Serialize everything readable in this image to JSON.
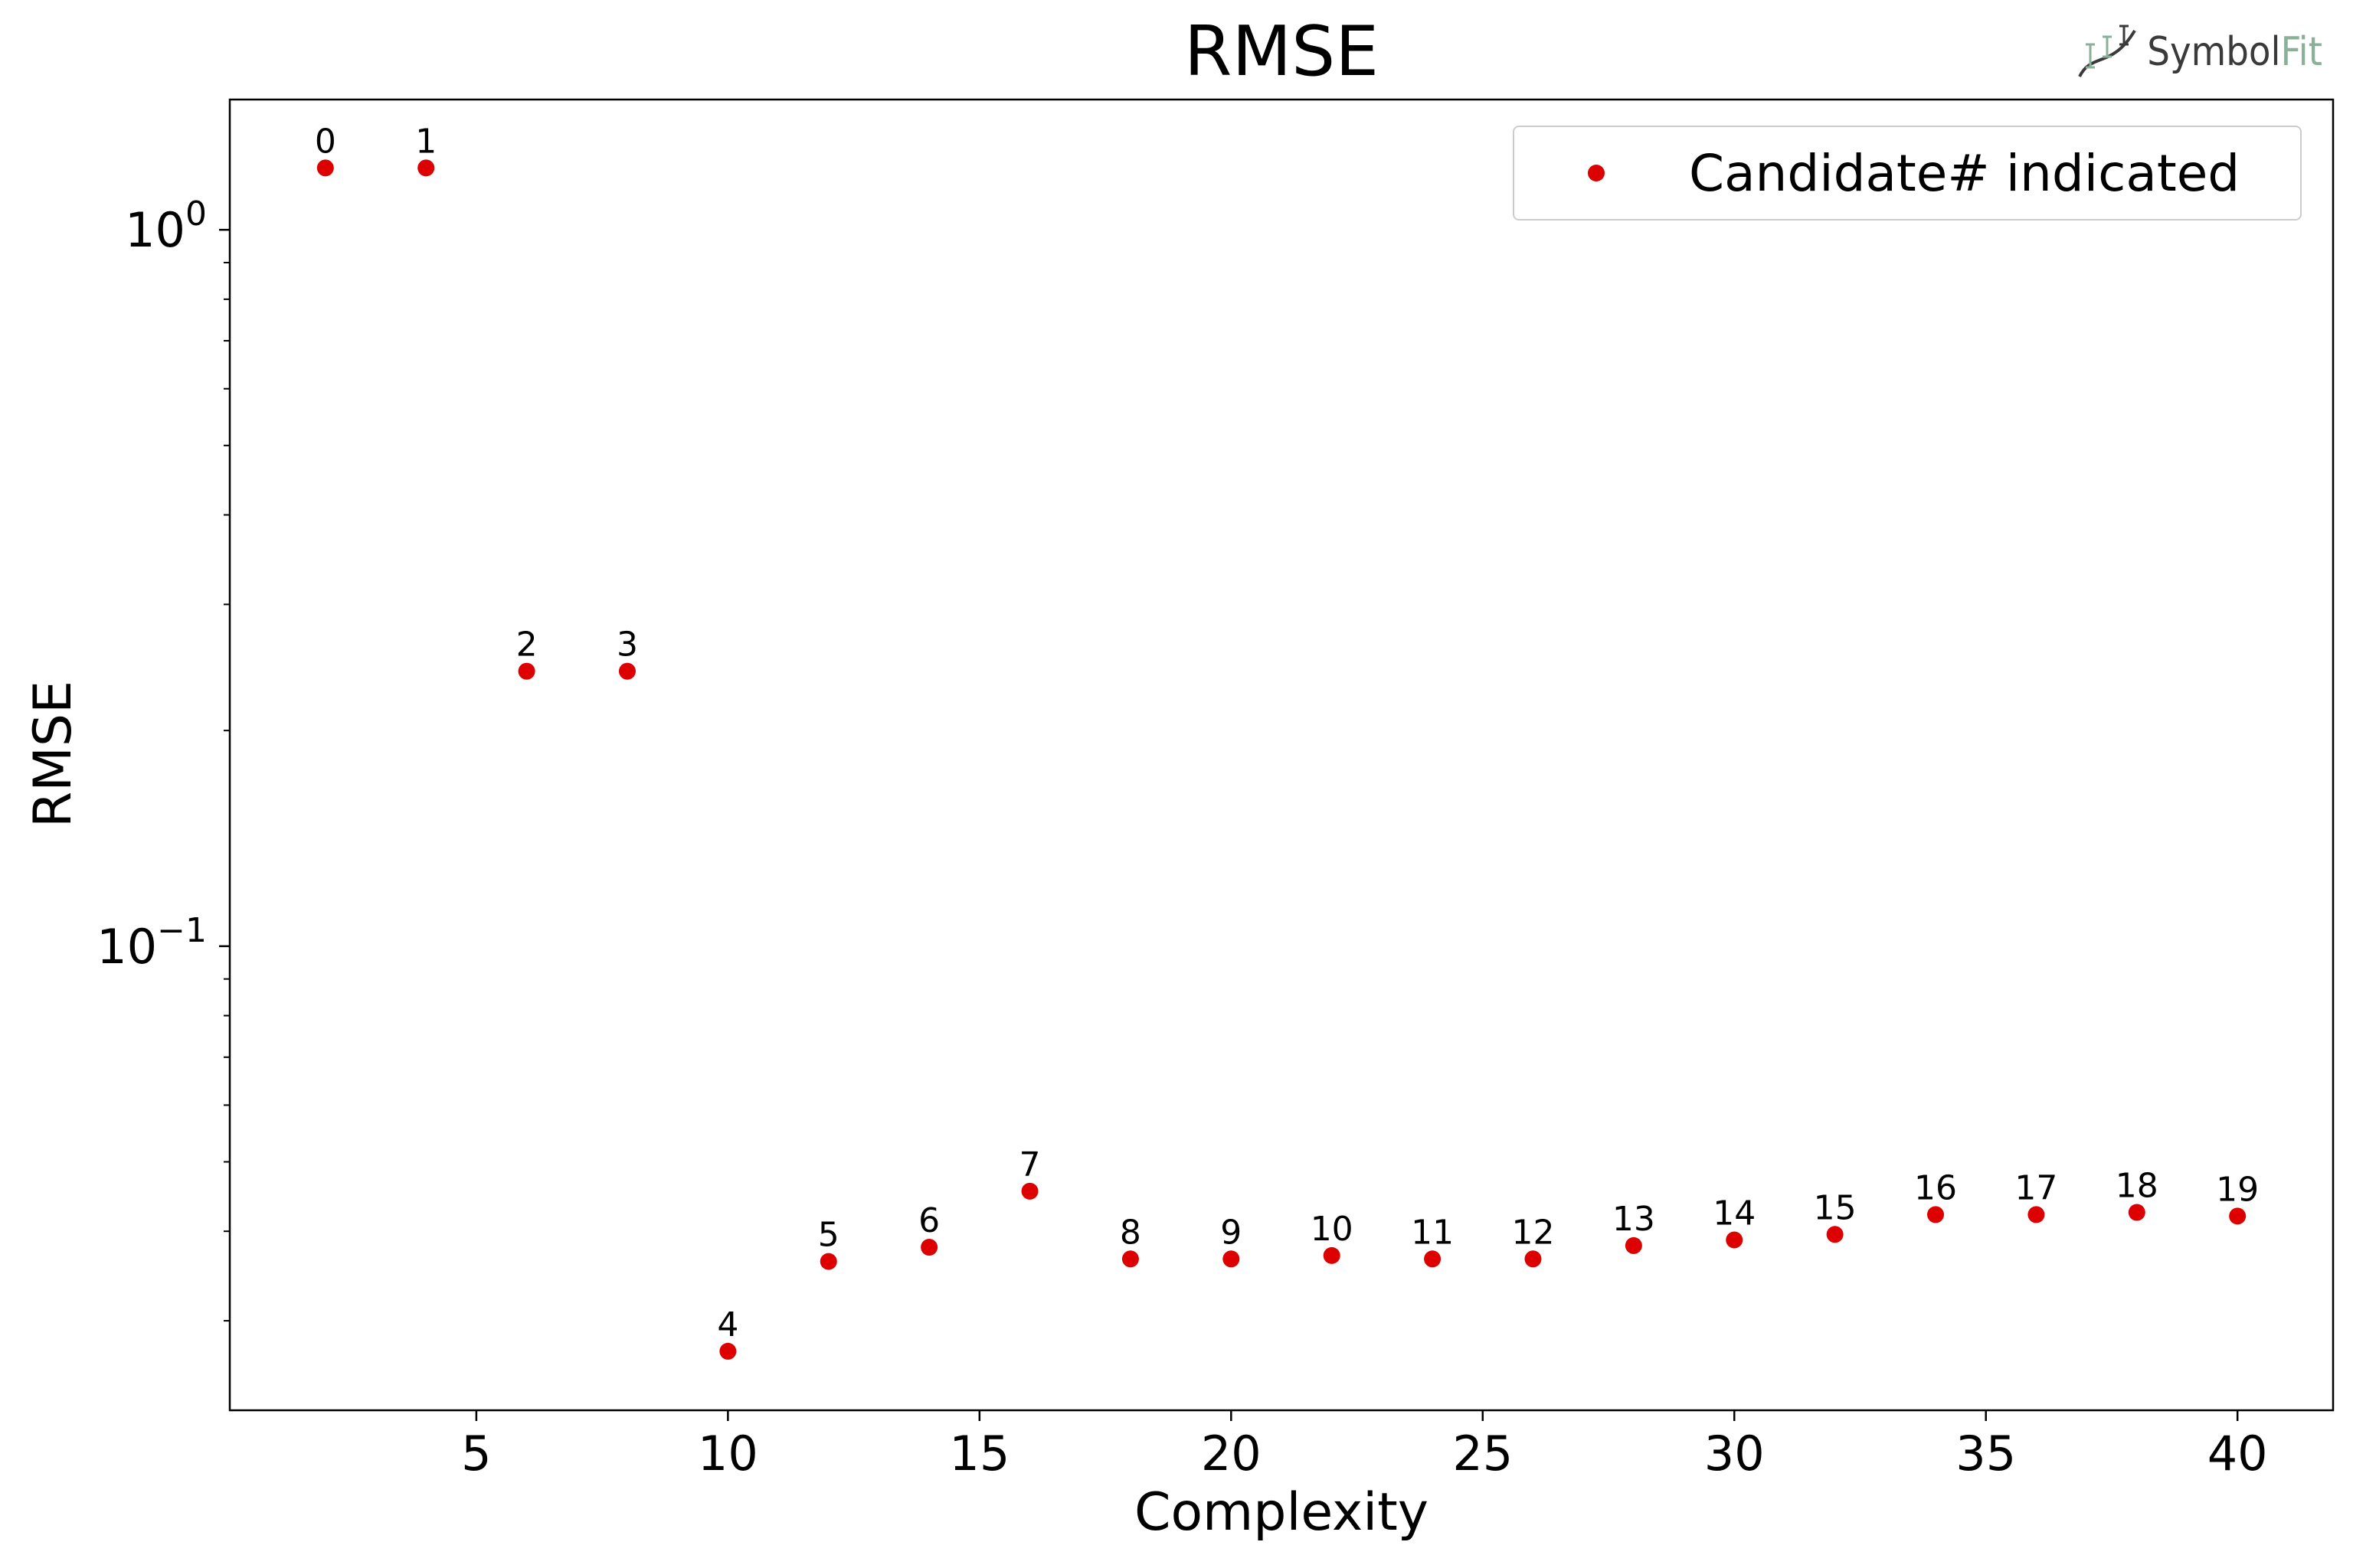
{
  "logo": {
    "name_main": "Symbol",
    "name_accent": "Fit",
    "accent_color": "#8ab09a"
  },
  "chart_data": {
    "type": "scatter",
    "title": "RMSE",
    "xlabel": "Complexity",
    "ylabel": "RMSE",
    "yscale": "log",
    "xlim": [
      0.1,
      41.9
    ],
    "ylim": [
      0.0225,
      1.52
    ],
    "xticks": [
      5,
      10,
      15,
      20,
      25,
      30,
      35,
      40
    ],
    "xtick_labels": [
      "5",
      "10",
      "15",
      "20",
      "25",
      "30",
      "35",
      "40"
    ],
    "yticks": [
      0.1,
      1.0
    ],
    "ytick_labels": [
      {
        "base": "10",
        "exp": "−1"
      },
      {
        "base": "10",
        "exp": "0"
      }
    ],
    "legend": {
      "label": "Candidate# indicated",
      "position": "top-right"
    },
    "marker_color": "#dd0000",
    "grid": false,
    "series": [
      {
        "name": "Candidate# indicated",
        "x": [
          2,
          4,
          6,
          8,
          10,
          12,
          14,
          16,
          18,
          20,
          22,
          24,
          26,
          28,
          30,
          32,
          34,
          36,
          38,
          40
        ],
        "y": [
          1.22,
          1.22,
          0.242,
          0.242,
          0.0272,
          0.0363,
          0.038,
          0.0455,
          0.0366,
          0.0366,
          0.037,
          0.0366,
          0.0366,
          0.0382,
          0.0389,
          0.0396,
          0.0422,
          0.0422,
          0.0425,
          0.042
        ],
        "point_labels": [
          "0",
          "1",
          "2",
          "3",
          "4",
          "5",
          "6",
          "7",
          "8",
          "9",
          "10",
          "11",
          "12",
          "13",
          "14",
          "15",
          "16",
          "17",
          "18",
          "19"
        ]
      }
    ]
  }
}
